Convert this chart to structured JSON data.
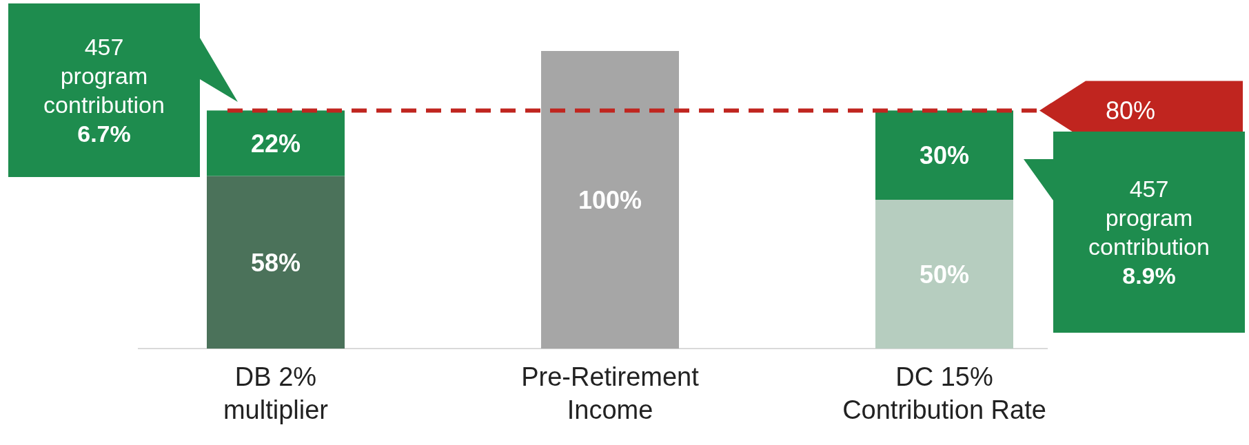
{
  "chart_data": {
    "type": "bar",
    "stacked": true,
    "categories": [
      "DB 2%\nmultiplier",
      "Pre-Retirement\nIncome",
      "DC 15%\nContribution Rate"
    ],
    "series": [
      {
        "colors": [
          "#4b725a",
          "#a6a6a6",
          "#b6cdbf"
        ],
        "values": [
          58,
          100,
          50
        ],
        "value_labels": [
          "58%",
          "100%",
          "50%"
        ]
      },
      {
        "color": "#1e8c4e",
        "values": [
          22,
          null,
          30
        ],
        "value_labels": [
          "22%",
          null,
          "30%"
        ]
      }
    ],
    "ref_lines": [
      {
        "axis": "y",
        "value": 80,
        "label": "80%",
        "color": "#c0251f",
        "line_style": "dashed"
      }
    ],
    "annotations": [
      "457 program contribution 6.7%",
      "457 program contribution 8.9%"
    ]
  }
}
